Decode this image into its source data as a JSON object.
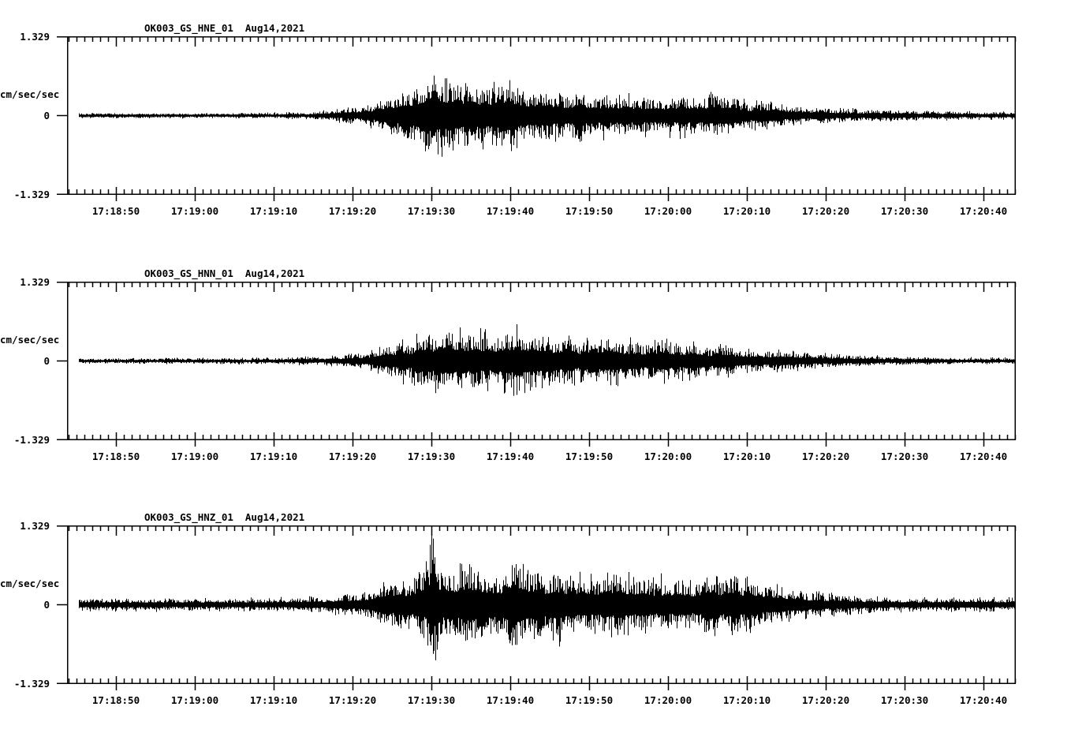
{
  "display": {
    "background": "#ffffff",
    "ink": "#000000"
  },
  "chart_data": [
    {
      "type": "line",
      "subtype": "seismogram",
      "title": "OK003_GS_HNE_01",
      "date": "Aug14,2021",
      "ylabel": "cm/sec/sec",
      "ylim": [
        -1.329,
        1.329
      ],
      "ytick_labels": [
        "1.329",
        "0",
        "-1.329"
      ],
      "xtick_labels": [
        "17:18:50",
        "17:19:00",
        "17:19:10",
        "17:19:20",
        "17:19:30",
        "17:19:40",
        "17:19:50",
        "17:20:00",
        "17:20:10",
        "17:20:20",
        "17:20:30",
        "17:20:40"
      ],
      "x_major_interval_s": 10,
      "x_minor_interval_s": 1,
      "axis_span_s": 120.3,
      "first_major_offset_s": 6.2,
      "trace_start_s": 1.5,
      "grid": false,
      "legend": "none",
      "seed": 7,
      "envelope_keypoints_s_amp": [
        [
          1.5,
          0.045
        ],
        [
          20,
          0.05
        ],
        [
          27,
          0.055
        ],
        [
          31,
          0.07
        ],
        [
          33,
          0.1
        ],
        [
          35,
          0.13
        ],
        [
          37,
          0.16
        ],
        [
          38.5,
          0.22
        ],
        [
          40,
          0.3
        ],
        [
          41.5,
          0.4
        ],
        [
          43.5,
          0.48
        ],
        [
          45.5,
          0.62
        ],
        [
          46.5,
          0.78
        ],
        [
          48,
          0.65
        ],
        [
          50,
          0.58
        ],
        [
          52,
          0.62
        ],
        [
          54,
          0.55
        ],
        [
          55.8,
          0.66
        ],
        [
          57.5,
          0.6
        ],
        [
          59.5,
          0.52
        ],
        [
          62,
          0.5
        ],
        [
          65,
          0.46
        ],
        [
          68,
          0.44
        ],
        [
          71,
          0.42
        ],
        [
          73,
          0.4
        ],
        [
          76,
          0.36
        ],
        [
          79,
          0.43
        ],
        [
          83,
          0.4
        ],
        [
          86,
          0.3
        ],
        [
          89,
          0.24
        ],
        [
          92,
          0.2
        ],
        [
          95,
          0.17
        ],
        [
          98,
          0.14
        ],
        [
          102,
          0.115
        ],
        [
          106,
          0.1
        ],
        [
          112,
          0.085
        ],
        [
          120.3,
          0.07
        ]
      ]
    },
    {
      "type": "line",
      "subtype": "seismogram",
      "title": "OK003_GS_HNN_01",
      "date": "Aug14,2021",
      "ylabel": "cm/sec/sec",
      "ylim": [
        -1.329,
        1.329
      ],
      "ytick_labels": [
        "1.329",
        "0",
        "-1.329"
      ],
      "xtick_labels": [
        "17:18:50",
        "17:19:00",
        "17:19:10",
        "17:19:20",
        "17:19:30",
        "17:19:40",
        "17:19:50",
        "17:20:00",
        "17:20:10",
        "17:20:20",
        "17:20:30",
        "17:20:40"
      ],
      "x_major_interval_s": 10,
      "x_minor_interval_s": 1,
      "axis_span_s": 120.3,
      "first_major_offset_s": 6.2,
      "trace_start_s": 1.5,
      "grid": false,
      "legend": "none",
      "seed": 23,
      "envelope_keypoints_s_amp": [
        [
          1.5,
          0.05
        ],
        [
          20,
          0.055
        ],
        [
          28,
          0.065
        ],
        [
          31,
          0.08
        ],
        [
          34,
          0.1
        ],
        [
          36.5,
          0.13
        ],
        [
          38.5,
          0.18
        ],
        [
          40.5,
          0.28
        ],
        [
          42.5,
          0.38
        ],
        [
          44.5,
          0.48
        ],
        [
          46.5,
          0.58
        ],
        [
          48.5,
          0.62
        ],
        [
          50.5,
          0.55
        ],
        [
          52.5,
          0.58
        ],
        [
          55,
          0.52
        ],
        [
          57,
          0.62
        ],
        [
          59,
          0.52
        ],
        [
          61.5,
          0.47
        ],
        [
          64,
          0.44
        ],
        [
          67,
          0.41
        ],
        [
          70,
          0.43
        ],
        [
          73,
          0.39
        ],
        [
          75.5,
          0.42
        ],
        [
          78,
          0.36
        ],
        [
          80.5,
          0.32
        ],
        [
          83,
          0.29
        ],
        [
          85.5,
          0.26
        ],
        [
          88,
          0.23
        ],
        [
          91,
          0.19
        ],
        [
          94,
          0.16
        ],
        [
          97,
          0.13
        ],
        [
          100,
          0.11
        ],
        [
          104,
          0.095
        ],
        [
          108,
          0.08
        ],
        [
          113,
          0.07
        ],
        [
          120.3,
          0.06
        ]
      ]
    },
    {
      "type": "line",
      "subtype": "seismogram",
      "title": "OK003_GS_HNZ_01",
      "date": "Aug14,2021",
      "ylabel": "cm/sec/sec",
      "ylim": [
        -1.329,
        1.329
      ],
      "ytick_labels": [
        "1.329",
        "0",
        "-1.329"
      ],
      "xtick_labels": [
        "17:18:50",
        "17:19:00",
        "17:19:10",
        "17:19:20",
        "17:19:30",
        "17:19:40",
        "17:19:50",
        "17:20:00",
        "17:20:10",
        "17:20:20",
        "17:20:30",
        "17:20:40"
      ],
      "x_major_interval_s": 10,
      "x_minor_interval_s": 1,
      "axis_span_s": 120.3,
      "first_major_offset_s": 6.2,
      "trace_start_s": 1.5,
      "grid": false,
      "legend": "none",
      "seed": 41,
      "envelope_keypoints_s_amp": [
        [
          1.5,
          0.12
        ],
        [
          18,
          0.12
        ],
        [
          26,
          0.125
        ],
        [
          30,
          0.14
        ],
        [
          33,
          0.17
        ],
        [
          35.5,
          0.21
        ],
        [
          37.5,
          0.27
        ],
        [
          39.5,
          0.36
        ],
        [
          41.5,
          0.46
        ],
        [
          43.5,
          0.54
        ],
        [
          45.3,
          0.65
        ],
        [
          46.3,
          1.25
        ],
        [
          47.2,
          0.78
        ],
        [
          48.5,
          0.68
        ],
        [
          50,
          0.8
        ],
        [
          51.5,
          0.66
        ],
        [
          53,
          0.62
        ],
        [
          55,
          0.7
        ],
        [
          57,
          0.95
        ],
        [
          58.5,
          0.68
        ],
        [
          60.5,
          0.62
        ],
        [
          62.5,
          0.72
        ],
        [
          64.5,
          0.62
        ],
        [
          66.5,
          0.57
        ],
        [
          68.5,
          0.65
        ],
        [
          70.5,
          0.56
        ],
        [
          73,
          0.52
        ],
        [
          75.5,
          0.58
        ],
        [
          77.5,
          0.5
        ],
        [
          80,
          0.53
        ],
        [
          82,
          0.58
        ],
        [
          84,
          0.52
        ],
        [
          86,
          0.56
        ],
        [
          88,
          0.46
        ],
        [
          90,
          0.38
        ],
        [
          92,
          0.3
        ],
        [
          94,
          0.25
        ],
        [
          96,
          0.21
        ],
        [
          99,
          0.175
        ],
        [
          102,
          0.155
        ],
        [
          106,
          0.14
        ],
        [
          112,
          0.13
        ],
        [
          120.3,
          0.13
        ]
      ]
    }
  ]
}
